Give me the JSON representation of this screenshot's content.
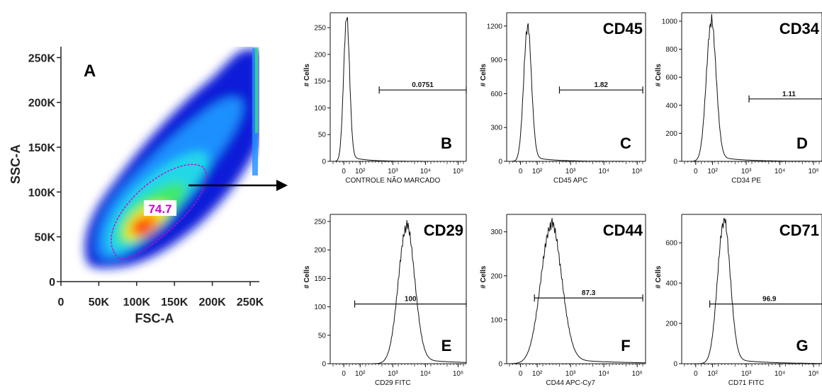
{
  "chart_data": [
    {
      "type": "density",
      "panel_letter": "A",
      "xlabel": "FSC-A",
      "ylabel": "SSC-A",
      "xlim": [
        0,
        262144
      ],
      "ylim": [
        0,
        262144
      ],
      "x_ticks": [
        {
          "v": 0,
          "label": "0"
        },
        {
          "v": 50000,
          "label": "50K"
        },
        {
          "v": 100000,
          "label": "100K"
        },
        {
          "v": 150000,
          "label": "150K"
        },
        {
          "v": 200000,
          "label": "200K"
        },
        {
          "v": 250000,
          "label": "250K"
        }
      ],
      "y_ticks": [
        {
          "v": 0,
          "label": "0"
        },
        {
          "v": 50000,
          "label": "50K"
        },
        {
          "v": 100000,
          "label": "100K"
        },
        {
          "v": 150000,
          "label": "150K"
        },
        {
          "v": 200000,
          "label": "200K"
        },
        {
          "v": 250000,
          "label": "250K"
        }
      ],
      "gate": {
        "label": "74.7",
        "percent": 74.7
      },
      "colormap": [
        "#0a1fd8",
        "#1e90ff",
        "#22d8e8",
        "#3ee86a",
        "#f2f21e",
        "#ff8c00",
        "#ff1a0a"
      ]
    },
    {
      "type": "histogram",
      "panel_letter": "B",
      "marker_label": "",
      "xlabel": "CONTROLE NÃO MARCADO",
      "ylabel": "# Cells",
      "y_ticks": [
        0,
        50,
        100,
        150,
        200,
        250
      ],
      "ymax": 270,
      "peak": 265,
      "peak_pos": 0.12,
      "width": 0.022,
      "gate_value": "0.0751",
      "gate_range": [
        0.36,
        1.0
      ],
      "gate_level": 0.52,
      "x_ticks": [
        {
          "label": "0",
          "pos": 0.1
        },
        {
          "label": "10²",
          "pos": 0.22
        },
        {
          "label": "10³",
          "pos": 0.46
        },
        {
          "label": "10⁴",
          "pos": 0.7
        },
        {
          "label": "10⁶",
          "pos": 0.94
        }
      ]
    },
    {
      "type": "histogram",
      "panel_letter": "C",
      "marker_label": "CD45",
      "xlabel": "CD45 APC",
      "ylabel": "# Cells",
      "y_ticks": [
        0,
        300,
        600,
        900,
        1200
      ],
      "ymax": 1280,
      "peak": 1180,
      "peak_pos": 0.15,
      "width": 0.028,
      "gate_value": "1.82",
      "gate_range": [
        0.38,
        0.98
      ],
      "gate_level": 0.52,
      "x_ticks": [
        {
          "label": "0",
          "pos": 0.1
        },
        {
          "label": "10²",
          "pos": 0.22
        },
        {
          "label": "10³",
          "pos": 0.46
        },
        {
          "label": "10⁴",
          "pos": 0.7
        },
        {
          "label": "10⁶",
          "pos": 0.94
        }
      ]
    },
    {
      "type": "histogram",
      "panel_letter": "D",
      "marker_label": "CD34",
      "xlabel": "CD34 PE",
      "ylabel": "# Cells",
      "y_ticks": [
        0,
        200,
        400,
        600,
        800,
        1000
      ],
      "ymax": 1030,
      "peak": 985,
      "peak_pos": 0.21,
      "width": 0.035,
      "gate_value": "1.11",
      "gate_range": [
        0.48,
        1.05
      ],
      "gate_level": 0.58,
      "x_ticks": [
        {
          "label": "0",
          "pos": 0.1
        },
        {
          "label": "10²",
          "pos": 0.22
        },
        {
          "label": "10³",
          "pos": 0.46
        },
        {
          "label": "10⁴",
          "pos": 0.7
        },
        {
          "label": "10⁶",
          "pos": 0.94
        }
      ]
    },
    {
      "type": "histogram",
      "panel_letter": "E",
      "marker_label": "CD29",
      "xlabel": "CD29 FITC",
      "ylabel": "# Cells",
      "y_ticks": [
        0,
        50,
        100,
        150,
        200,
        250
      ],
      "ymax": 255,
      "peak": 238,
      "peak_pos": 0.56,
      "width": 0.06,
      "gate_value": "100",
      "gate_range": [
        0.18,
        1.0
      ],
      "gate_level": 0.6,
      "x_ticks": [
        {
          "label": "0",
          "pos": 0.1
        },
        {
          "label": "10²",
          "pos": 0.22
        },
        {
          "label": "10³",
          "pos": 0.46
        },
        {
          "label": "10⁴",
          "pos": 0.7
        },
        {
          "label": "10⁶",
          "pos": 0.94
        }
      ]
    },
    {
      "type": "histogram",
      "panel_letter": "F",
      "marker_label": "CD44",
      "xlabel": "CD44 APC-Cy7",
      "ylabel": "# Cells",
      "y_ticks": [
        0,
        100,
        200,
        300
      ],
      "ymax": 330,
      "peak": 312,
      "peak_pos": 0.32,
      "width": 0.075,
      "gate_value": "87.3",
      "gate_range": [
        0.2,
        0.98
      ],
      "gate_level": 0.56,
      "x_ticks": [
        {
          "label": "0",
          "pos": 0.1
        },
        {
          "label": "10²",
          "pos": 0.22
        },
        {
          "label": "10³",
          "pos": 0.46
        },
        {
          "label": "10⁴",
          "pos": 0.7
        },
        {
          "label": "10⁶",
          "pos": 0.94
        }
      ]
    },
    {
      "type": "histogram",
      "panel_letter": "G",
      "marker_label": "CD71",
      "xlabel": "CD71 FITC",
      "ylabel": "# Cells",
      "y_ticks": [
        0,
        200,
        400,
        600
      ],
      "ymax": 720,
      "peak": 700,
      "peak_pos": 0.3,
      "width": 0.045,
      "gate_value": "96.9",
      "gate_range": [
        0.2,
        1.05
      ],
      "gate_level": 0.6,
      "x_ticks": [
        {
          "label": "0",
          "pos": 0.1
        },
        {
          "label": "10²",
          "pos": 0.22
        },
        {
          "label": "10³",
          "pos": 0.46
        },
        {
          "label": "10⁴",
          "pos": 0.7
        },
        {
          "label": "10⁶",
          "pos": 0.94
        }
      ]
    }
  ]
}
